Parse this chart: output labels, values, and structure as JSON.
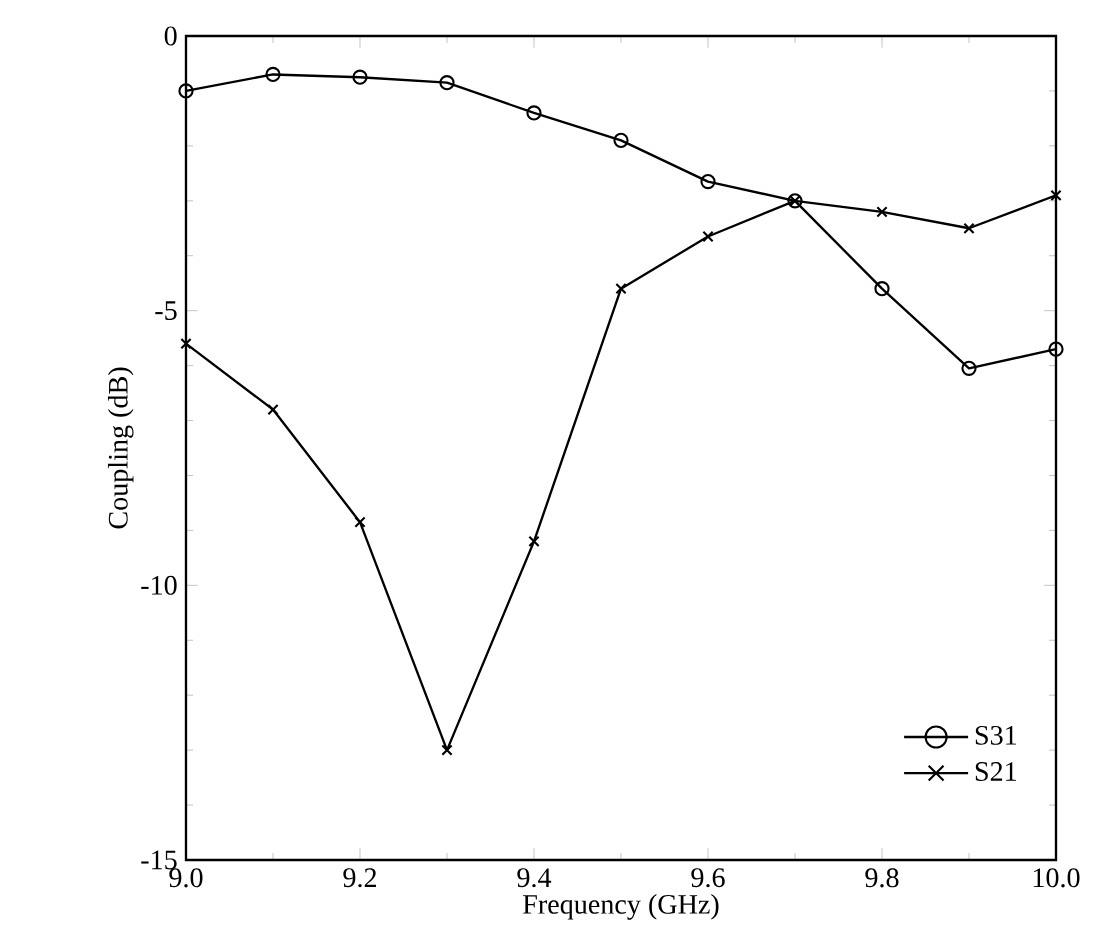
{
  "chart_data": {
    "type": "line",
    "xlabel": "Frequency (GHz)",
    "ylabel": "Coupling (dB)",
    "x": [
      9.0,
      9.1,
      9.2,
      9.3,
      9.4,
      9.5,
      9.6,
      9.7,
      9.8,
      9.9,
      10.0
    ],
    "series": [
      {
        "name": "S31",
        "color": "#000000",
        "marker": "circle",
        "values": [
          -1.0,
          -0.7,
          -0.75,
          -0.85,
          -1.4,
          -1.9,
          -2.65,
          -3.0,
          -4.6,
          -6.05,
          -5.7
        ]
      },
      {
        "name": "S21",
        "color": "#000000",
        "marker": "cross",
        "values": [
          -5.6,
          -6.8,
          -8.85,
          -13.0,
          -9.2,
          -4.6,
          -3.65,
          -3.0,
          -3.2,
          -3.5,
          -2.9
        ]
      }
    ],
    "xlim": [
      9.0,
      10.0
    ],
    "ylim": [
      -15,
      0
    ],
    "xticks": [
      {
        "value": 9.0,
        "label": "9.0"
      },
      {
        "value": 9.2,
        "label": "9.2"
      },
      {
        "value": 9.4,
        "label": "9.4"
      },
      {
        "value": 9.6,
        "label": "9.6"
      },
      {
        "value": 9.8,
        "label": "9.8"
      },
      {
        "value": 10.0,
        "label": "10.0"
      }
    ],
    "yticks": [
      -15,
      -10,
      -5,
      0
    ],
    "legend": "bottom right",
    "line_style": "solid"
  }
}
